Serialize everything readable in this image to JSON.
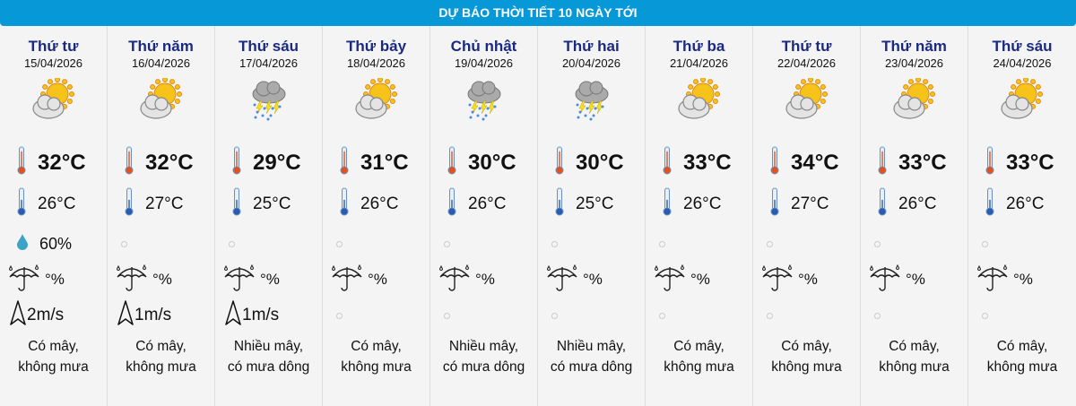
{
  "header": {
    "title": "DỰ BÁO THỜI TIẾT 10 NGÀY TỚI"
  },
  "colors": {
    "header": "#0798d8",
    "day_name": "#1b2a80"
  },
  "days": [
    {
      "name": "Thứ tư",
      "date": "15/04/2026",
      "icon": "partly-cloudy-sun-icon",
      "max": "32°C",
      "min": "26°C",
      "humidity": "60%",
      "rain": "°%",
      "wind": "2m/s",
      "desc1": "Có mây,",
      "desc2": "không mưa"
    },
    {
      "name": "Thứ năm",
      "date": "16/04/2026",
      "icon": "partly-cloudy-sun-icon",
      "max": "32°C",
      "min": "27°C",
      "humidity": null,
      "rain": "°%",
      "wind": "1m/s",
      "desc1": "Có mây,",
      "desc2": "không mưa"
    },
    {
      "name": "Thứ sáu",
      "date": "17/04/2026",
      "icon": "thunderstorm-icon",
      "max": "29°C",
      "min": "25°C",
      "humidity": null,
      "rain": "°%",
      "wind": "1m/s",
      "desc1": "Nhiều mây,",
      "desc2": "có mưa dông"
    },
    {
      "name": "Thứ bảy",
      "date": "18/04/2026",
      "icon": "partly-cloudy-sun-icon",
      "max": "31°C",
      "min": "26°C",
      "humidity": null,
      "rain": "°%",
      "wind": null,
      "desc1": "Có mây,",
      "desc2": "không mưa"
    },
    {
      "name": "Chủ nhật",
      "date": "19/04/2026",
      "icon": "thunderstorm-icon",
      "max": "30°C",
      "min": "26°C",
      "humidity": null,
      "rain": "°%",
      "wind": null,
      "desc1": "Nhiều mây,",
      "desc2": "có mưa dông"
    },
    {
      "name": "Thứ hai",
      "date": "20/04/2026",
      "icon": "thunderstorm-icon",
      "max": "30°C",
      "min": "25°C",
      "humidity": null,
      "rain": "°%",
      "wind": null,
      "desc1": "Nhiều mây,",
      "desc2": "có mưa dông"
    },
    {
      "name": "Thứ ba",
      "date": "21/04/2026",
      "icon": "partly-cloudy-sun-icon",
      "max": "33°C",
      "min": "26°C",
      "humidity": null,
      "rain": "°%",
      "wind": null,
      "desc1": "Có mây,",
      "desc2": "không mưa"
    },
    {
      "name": "Thứ tư",
      "date": "22/04/2026",
      "icon": "partly-cloudy-sun-icon",
      "max": "34°C",
      "min": "27°C",
      "humidity": null,
      "rain": "°%",
      "wind": null,
      "desc1": "Có mây,",
      "desc2": "không mưa"
    },
    {
      "name": "Thứ năm",
      "date": "23/04/2026",
      "icon": "partly-cloudy-sun-icon",
      "max": "33°C",
      "min": "26°C",
      "humidity": null,
      "rain": "°%",
      "wind": null,
      "desc1": "Có mây,",
      "desc2": "không mưa"
    },
    {
      "name": "Thứ sáu",
      "date": "24/04/2026",
      "icon": "partly-cloudy-sun-icon",
      "max": "33°C",
      "min": "26°C",
      "humidity": null,
      "rain": "°%",
      "wind": null,
      "desc1": "Có mây,",
      "desc2": "không mưa"
    }
  ]
}
